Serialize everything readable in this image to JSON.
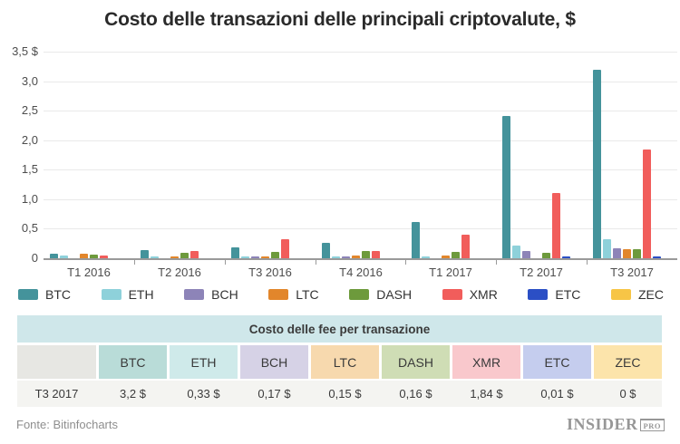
{
  "title": "Costo delle transazioni delle principali criptovalute, $",
  "chart_data": {
    "type": "bar",
    "title": "Costo delle transazioni delle principali criptovalute, $",
    "categories": [
      "T1 2016",
      "T2 2016",
      "T3 2016",
      "T4 2016",
      "T1 2017",
      "T2 2017",
      "T3 2017"
    ],
    "series": [
      {
        "name": "BTC",
        "color": "#44939b",
        "pastel": "#b9dcd8",
        "values": [
          0.08,
          0.14,
          0.19,
          0.26,
          0.62,
          2.41,
          3.2
        ]
      },
      {
        "name": "ETH",
        "color": "#8ed1da",
        "pastel": "#cfeaea",
        "values": [
          0.04,
          0.03,
          0.02,
          0.02,
          0.02,
          0.22,
          0.33
        ]
      },
      {
        "name": "BCH",
        "color": "#8d84b8",
        "pastel": "#d6d2e6",
        "values": [
          0,
          0,
          0.02,
          0.03,
          0,
          0.12,
          0.17
        ]
      },
      {
        "name": "LTC",
        "color": "#e2862b",
        "pastel": "#f7d9ae",
        "values": [
          0.07,
          0.03,
          0.03,
          0.04,
          0.05,
          0,
          0.15
        ]
      },
      {
        "name": "DASH",
        "color": "#6d9a3c",
        "pastel": "#cfddb5",
        "values": [
          0.06,
          0.09,
          0.1,
          0.12,
          0.11,
          0.09,
          0.16
        ]
      },
      {
        "name": "XMR",
        "color": "#f15d5b",
        "pastel": "#f9c8cc",
        "values": [
          0.05,
          0.12,
          0.33,
          0.12,
          0.4,
          1.1,
          1.84
        ]
      },
      {
        "name": "ETC",
        "color": "#2b4fc5",
        "pastel": "#c5cdee",
        "values": [
          0,
          0,
          0,
          0,
          0,
          0.03,
          0.01
        ]
      },
      {
        "name": "ZEC",
        "color": "#f7c546",
        "pastel": "#fce4ab",
        "values": [
          0,
          0,
          0,
          0,
          0,
          0,
          0
        ]
      }
    ],
    "ylim": [
      0,
      3.5
    ],
    "ytick_labels": [
      "3,5 $",
      "3,0",
      "2,5",
      "2,0",
      "1,5",
      "1,0",
      "0,5",
      "0"
    ],
    "grid": true,
    "legend_position": "bottom"
  },
  "table": {
    "header": "Costo delle fee per transazione",
    "row_label": "T3 2017",
    "columns": [
      "BTC",
      "ETH",
      "BCH",
      "LTC",
      "DASH",
      "XMR",
      "ETC",
      "ZEC"
    ],
    "values": [
      "3,2 $",
      "0,33 $",
      "0,17 $",
      "0,15 $",
      "0,16 $",
      "1,84 $",
      "0,01 $",
      "0 $"
    ]
  },
  "footer": {
    "source": "Fonte: Bitinfocharts",
    "logo_text": "INSIDER",
    "logo_badge": "PRO"
  }
}
